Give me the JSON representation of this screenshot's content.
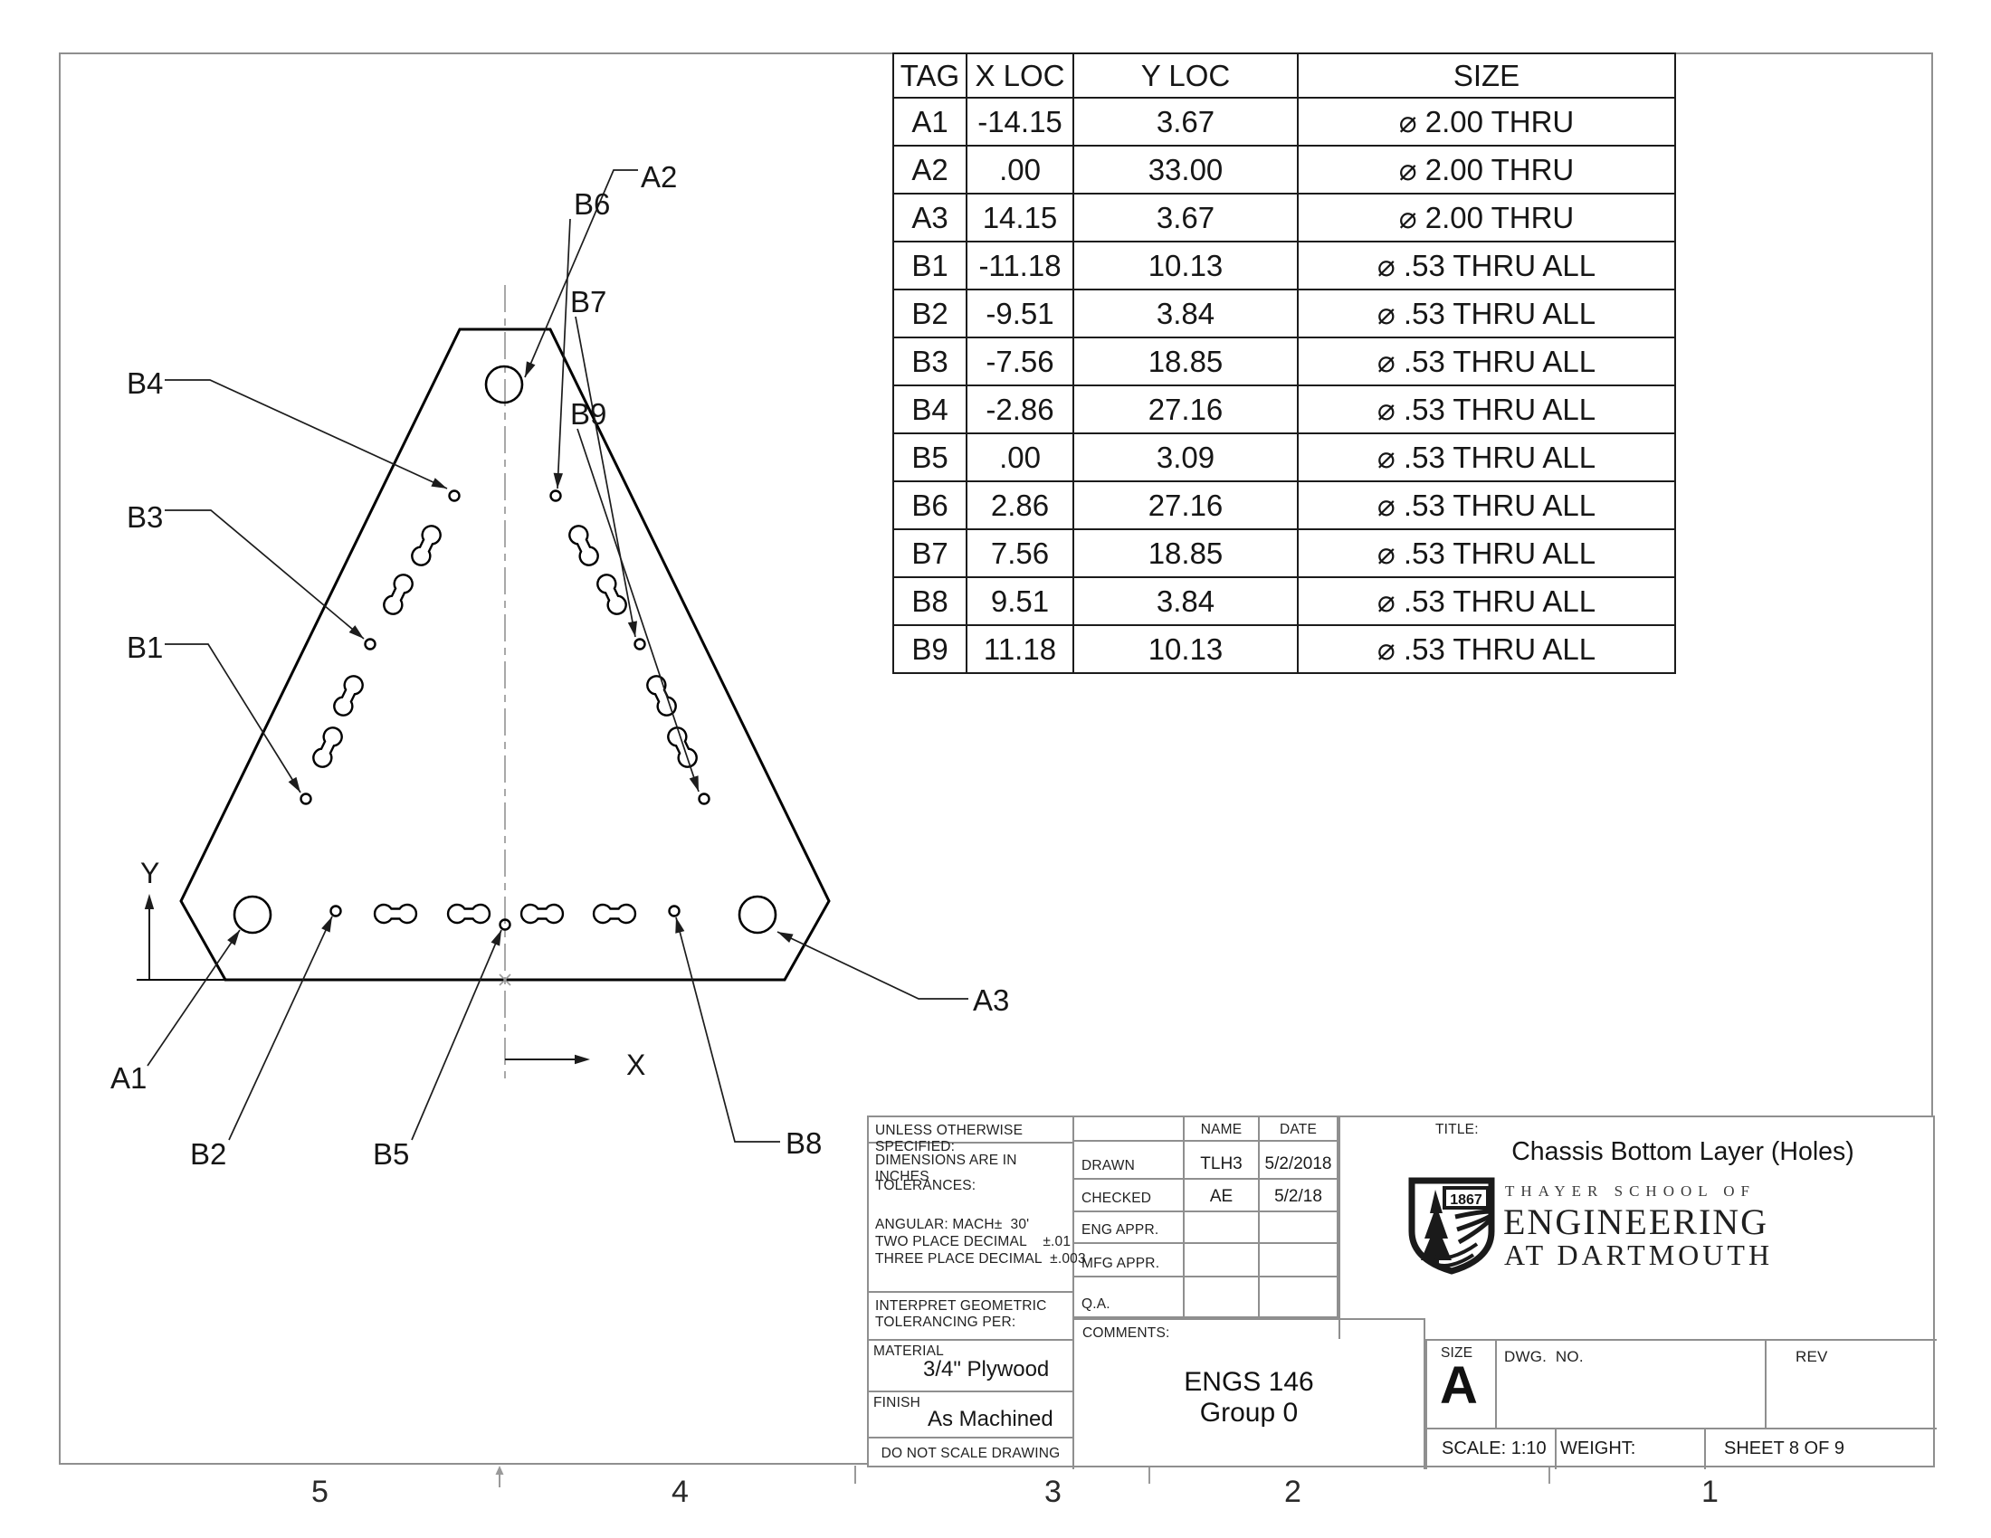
{
  "hole_table": {
    "headers": [
      "TAG",
      "X LOC",
      "Y LOC",
      "SIZE"
    ],
    "rows": [
      {
        "tag": "A1",
        "x": "-14.15",
        "y": "3.67",
        "size": "⌀ 2.00 THRU"
      },
      {
        "tag": "A2",
        "x": ".00",
        "y": "33.00",
        "size": "⌀ 2.00 THRU"
      },
      {
        "tag": "A3",
        "x": "14.15",
        "y": "3.67",
        "size": "⌀ 2.00 THRU"
      },
      {
        "tag": "B1",
        "x": "-11.18",
        "y": "10.13",
        "size": "⌀ .53 THRU ALL"
      },
      {
        "tag": "B2",
        "x": "-9.51",
        "y": "3.84",
        "size": "⌀ .53 THRU ALL"
      },
      {
        "tag": "B3",
        "x": "-7.56",
        "y": "18.85",
        "size": "⌀ .53 THRU ALL"
      },
      {
        "tag": "B4",
        "x": "-2.86",
        "y": "27.16",
        "size": "⌀ .53 THRU ALL"
      },
      {
        "tag": "B5",
        "x": ".00",
        "y": "3.09",
        "size": "⌀ .53 THRU ALL"
      },
      {
        "tag": "B6",
        "x": "2.86",
        "y": "27.16",
        "size": "⌀ .53 THRU ALL"
      },
      {
        "tag": "B7",
        "x": "7.56",
        "y": "18.85",
        "size": "⌀ .53 THRU ALL"
      },
      {
        "tag": "B8",
        "x": "9.51",
        "y": "3.84",
        "size": "⌀ .53 THRU ALL"
      },
      {
        "tag": "B9",
        "x": "11.18",
        "y": "10.13",
        "size": "⌀ .53 THRU ALL"
      }
    ]
  },
  "drawing": {
    "callouts": [
      "A1",
      "A2",
      "A3",
      "B1",
      "B2",
      "B3",
      "B4",
      "B5",
      "B6",
      "B7",
      "B9",
      "B8"
    ],
    "axes": {
      "x": "X",
      "y": "Y"
    }
  },
  "zones": [
    "5",
    "4",
    "3",
    "2",
    "1"
  ],
  "title_block": {
    "unless": "UNLESS OTHERWISE SPECIFIED:",
    "tol1": "DIMENSIONS ARE IN INCHES",
    "tol2": "TOLERANCES:",
    "tol3": "ANGULAR: MACH±  30'",
    "tol4": "TWO PLACE DECIMAL    ±.01",
    "tol5": "THREE PLACE DECIMAL  ±.003",
    "interpret1": "INTERPRET GEOMETRIC",
    "interpret2": "TOLERANCING PER:",
    "material_label": "MATERIAL",
    "material": "3/4\" Plywood",
    "finish_label": "FINISH",
    "finish": "As Machined",
    "do_not_scale": "DO NOT SCALE DRAWING",
    "name_header": "NAME",
    "date_header": "DATE",
    "approvals": [
      {
        "label": "DRAWN",
        "name": "TLH3",
        "date": "5/2/2018"
      },
      {
        "label": "CHECKED",
        "name": "AE",
        "date": "5/2/18"
      },
      {
        "label": "ENG APPR.",
        "name": "",
        "date": ""
      },
      {
        "label": "MFG APPR.",
        "name": "",
        "date": ""
      },
      {
        "label": "Q.A.",
        "name": "",
        "date": ""
      }
    ],
    "comments_label": "COMMENTS:",
    "comments1": "ENGS 146",
    "comments2": "Group 0",
    "title_label": "TITLE:",
    "title": "Chassis Bottom Layer (Holes)",
    "school_line1": "THAYER SCHOOL OF",
    "school_line2": "ENGINEERING",
    "school_line3": "AT DARTMOUTH",
    "shield_year": "1867",
    "size_label": "SIZE",
    "size_value": "A",
    "dwg_label": "DWG.  NO.",
    "rev_label": "REV",
    "scale": "SCALE: 1:10",
    "weight_label": "WEIGHT:",
    "sheet": "SHEET 8 OF 9"
  }
}
